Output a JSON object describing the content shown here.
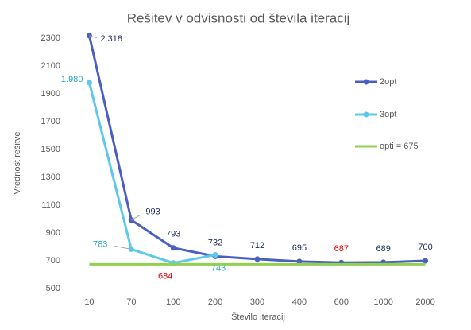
{
  "chart_data": {
    "type": "line",
    "title": "Rešitev v odvisnosti od števila iteracij",
    "x_label": "Število iteracij",
    "y_label": "Vrednost rešitve",
    "categories": [
      "10",
      "70",
      "100",
      "200",
      "300",
      "400",
      "600",
      "1000",
      "2000"
    ],
    "ylim": [
      500,
      2300
    ],
    "yticks": [
      500,
      700,
      900,
      1100,
      1300,
      1500,
      1700,
      1900,
      2100,
      2300
    ],
    "grid": false,
    "legend": "right",
    "series": [
      {
        "name": "2opt",
        "color": "#4a5fc1",
        "marker": true,
        "values": [
          2318,
          993,
          793,
          732,
          712,
          695,
          687,
          689,
          700
        ],
        "value_labels": [
          "2.318",
          "993",
          "793",
          "732",
          "712",
          "695",
          "687",
          "689",
          "700"
        ],
        "label_colors": [
          "#1f2a5c",
          "#1f2a5c",
          "#1f2a5c",
          "#1f2a5c",
          "#1f2a5c",
          "#1f2a5c",
          "#e00000",
          "#1f2a5c",
          "#1f2a5c"
        ]
      },
      {
        "name": "3opt",
        "color": "#5bc8ec",
        "marker": true,
        "values": [
          1980,
          783,
          684,
          743,
          null,
          null,
          null,
          null,
          null
        ],
        "value_labels": [
          "1.980",
          "783",
          "684",
          "743",
          null,
          null,
          null,
          null,
          null
        ],
        "label_colors": [
          "#2aa6cf",
          "#2aa6cf",
          "#e00000",
          "#2aa6cf",
          null,
          null,
          null,
          null,
          null
        ]
      },
      {
        "name": "opti = 675",
        "color": "#92d050",
        "marker": false,
        "values": [
          675,
          675,
          675,
          675,
          675,
          675,
          675,
          675,
          675
        ]
      }
    ]
  }
}
